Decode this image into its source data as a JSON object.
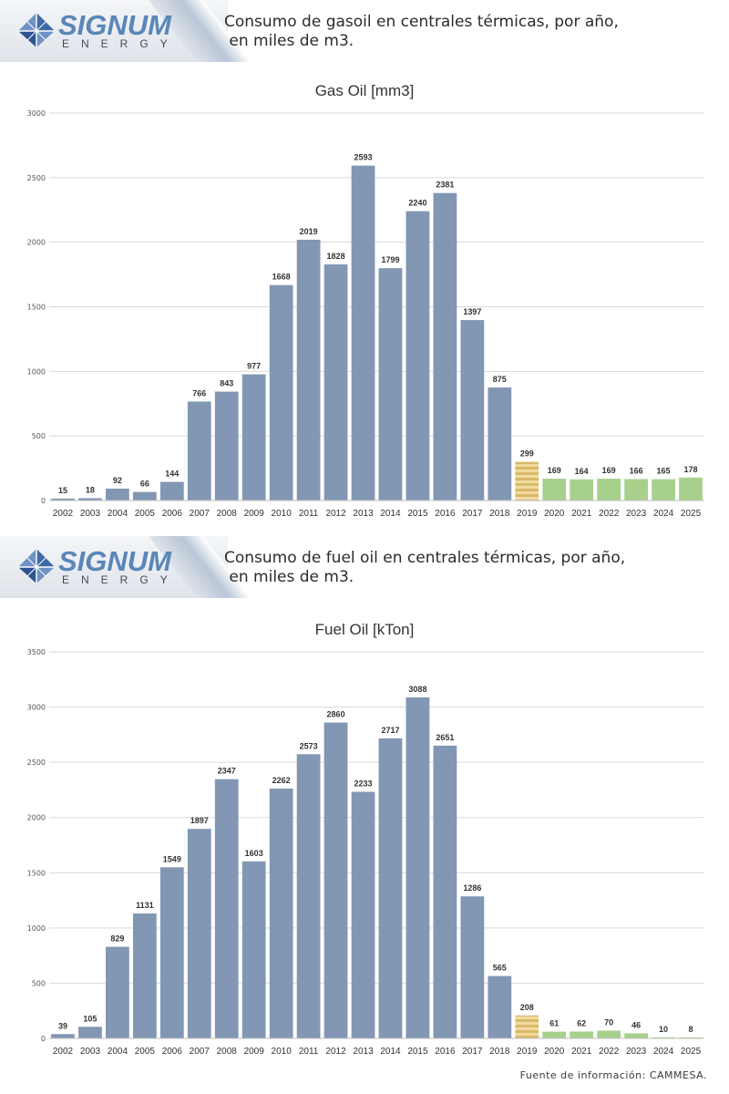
{
  "banners": [
    {
      "brand": "SIGNUM",
      "brand_sub": "ENERGY",
      "title": "Consumo de gasoil en centrales térmicas, por año,\n en miles de m3."
    },
    {
      "brand": "SIGNUM",
      "brand_sub": "ENERGY",
      "title": "Consumo de fuel oil en centrales térmicas, por año,\n en miles de m3."
    }
  ],
  "colors": {
    "bar": "#8197b4",
    "bar_hatched": "#d9b96a",
    "bar_projected": "#a8d08d",
    "grid": "#d9d9d9",
    "brand": "#5a86b8"
  },
  "chart_data": [
    {
      "type": "bar",
      "title": "Gas Oil [mm3]",
      "xlabel": "",
      "ylabel": "",
      "ylim": [
        0,
        3000
      ],
      "yticks": [
        0,
        500,
        1000,
        1500,
        2000,
        2500,
        3000
      ],
      "grid": true,
      "categories": [
        "2002",
        "2003",
        "2004",
        "2005",
        "2006",
        "2007",
        "2008",
        "2009",
        "2010",
        "2011",
        "2012",
        "2013",
        "2014",
        "2015",
        "2016",
        "2017",
        "2018",
        "2019",
        "2020",
        "2021",
        "2022",
        "2023",
        "2024",
        "2025"
      ],
      "values": [
        15,
        18,
        92,
        66,
        144,
        766,
        843,
        977,
        1668,
        2019,
        1828,
        2593,
        1799,
        2240,
        2381,
        1397,
        875,
        299,
        169,
        164,
        169,
        166,
        165,
        178
      ],
      "bar_style": [
        "actual",
        "actual",
        "actual",
        "actual",
        "actual",
        "actual",
        "actual",
        "actual",
        "actual",
        "actual",
        "actual",
        "actual",
        "actual",
        "actual",
        "actual",
        "actual",
        "actual",
        "hatched",
        "projected",
        "projected",
        "projected",
        "projected",
        "projected",
        "projected"
      ]
    },
    {
      "type": "bar",
      "title": "Fuel Oil [kTon]",
      "xlabel": "",
      "ylabel": "",
      "ylim": [
        0,
        3500
      ],
      "yticks": [
        0,
        500,
        1000,
        1500,
        2000,
        2500,
        3000,
        3500
      ],
      "grid": true,
      "categories": [
        "2002",
        "2003",
        "2004",
        "2005",
        "2006",
        "2007",
        "2008",
        "2009",
        "2010",
        "2011",
        "2012",
        "2013",
        "2014",
        "2015",
        "2016",
        "2017",
        "2018",
        "2019",
        "2020",
        "2021",
        "2022",
        "2023",
        "2024",
        "2025"
      ],
      "values": [
        39,
        105,
        829,
        1131,
        1549,
        1897,
        2347,
        1603,
        2262,
        2573,
        2860,
        2233,
        2717,
        3088,
        2651,
        1286,
        565,
        208,
        61,
        62,
        70,
        46,
        10,
        8
      ],
      "bar_style": [
        "actual",
        "actual",
        "actual",
        "actual",
        "actual",
        "actual",
        "actual",
        "actual",
        "actual",
        "actual",
        "actual",
        "actual",
        "actual",
        "actual",
        "actual",
        "actual",
        "actual",
        "hatched",
        "projected",
        "projected",
        "projected",
        "projected",
        "projected",
        "projected"
      ]
    }
  ],
  "footer": {
    "source": "Fuente de información: CAMMESA."
  }
}
